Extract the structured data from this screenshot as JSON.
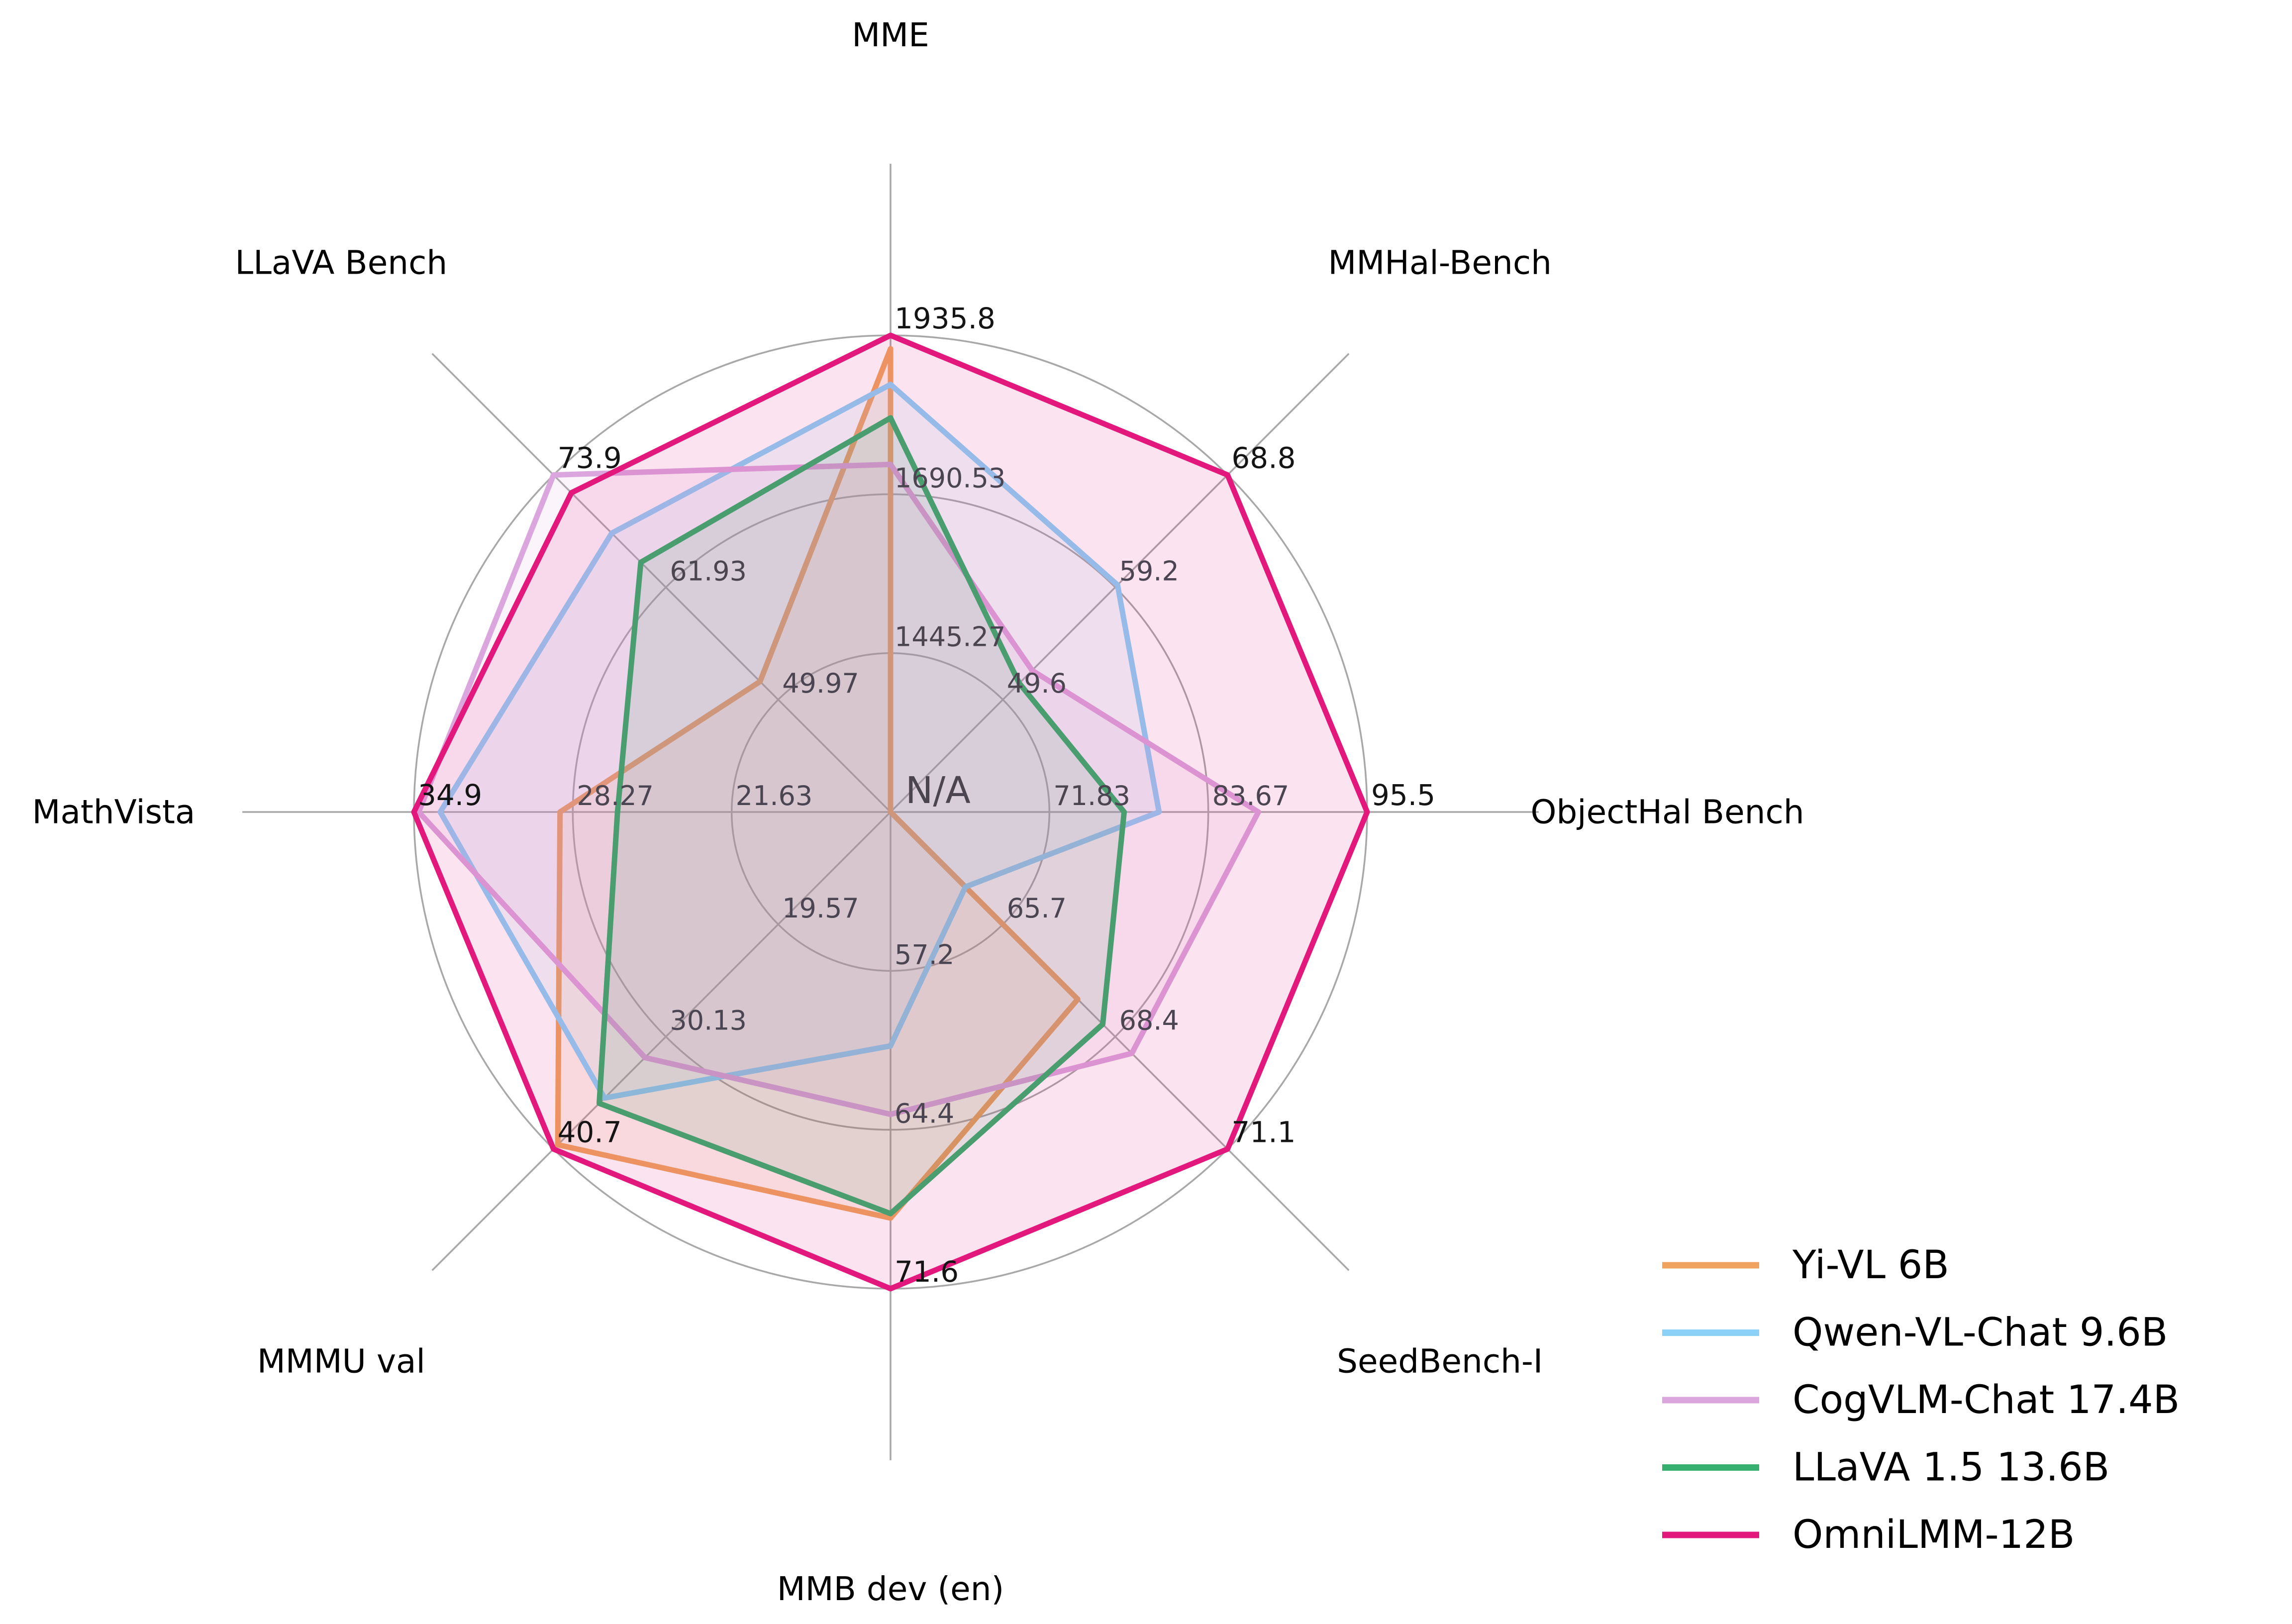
{
  "figure": {
    "background": "#ffffff"
  },
  "chart_data": {
    "type": "radar",
    "axes": [
      {
        "label": "MME",
        "min": 1200,
        "max": 1935.8,
        "ticks": [
          "1445.27",
          "1690.53",
          "1935.8"
        ],
        "center_label": "N/A"
      },
      {
        "label": "MMHal-Bench",
        "min": 40,
        "max": 68.8,
        "ticks": [
          "49.6",
          "59.2",
          "68.8"
        ]
      },
      {
        "label": "ObjectHal Bench",
        "min": 60,
        "max": 95.5,
        "ticks": [
          "71.83",
          "83.67",
          "95.5"
        ]
      },
      {
        "label": "SeedBench-I",
        "min": 63,
        "max": 71.1,
        "ticks": [
          "65.7",
          "68.4",
          "71.1"
        ]
      },
      {
        "label": "MMB dev (en)",
        "min": 50,
        "max": 71.6,
        "ticks": [
          "57.2",
          "64.4",
          "71.6"
        ]
      },
      {
        "label": "MMMU val",
        "min": 9,
        "max": 40.7,
        "ticks": [
          "19.57",
          "30.13",
          "40.7"
        ]
      },
      {
        "label": "MathVista",
        "min": 15,
        "max": 34.9,
        "ticks": [
          "21.63",
          "28.27",
          "34.9"
        ]
      },
      {
        "label": "LLaVA Bench",
        "min": 38,
        "max": 73.9,
        "ticks": [
          "49.97",
          "61.93",
          "73.9"
        ]
      }
    ],
    "series": [
      {
        "name": "Yi-VL 6B",
        "color": "#F0A35E",
        "values": [
          1915.1,
          null,
          null,
          67.5,
          68.4,
          40.3,
          28.8,
          51.9
        ]
      },
      {
        "name": "Qwen-VL-Chat 9.6B",
        "color": "#8CD2F8",
        "values": [
          1860.0,
          59.4,
          80.0,
          64.8,
          60.6,
          35.9,
          33.8,
          67.7
        ]
      },
      {
        "name": "CogVLM-Chat 17.4B",
        "color": "#DBA5DD",
        "values": [
          1736.6,
          52.1,
          87.4,
          68.8,
          63.7,
          32.1,
          34.7,
          73.9
        ]
      },
      {
        "name": "LLaVA 1.5 13.6B",
        "color": "#35B06E",
        "values": [
          1808.4,
          51.0,
          77.4,
          68.1,
          68.2,
          36.4,
          26.4,
          64.6
        ]
      },
      {
        "name": "OmniLMM-12B",
        "color": "#E2187D",
        "values": [
          1935.8,
          68.8,
          95.5,
          71.1,
          71.6,
          40.7,
          34.9,
          72.0
        ]
      }
    ],
    "grid": {
      "levels": 3,
      "color": "#a8a8a8",
      "tick_color_inner": "#4a4550",
      "tick_color_outer": "#141414",
      "axis_title_color": "#000000"
    },
    "legend_position": "bottom-right"
  }
}
